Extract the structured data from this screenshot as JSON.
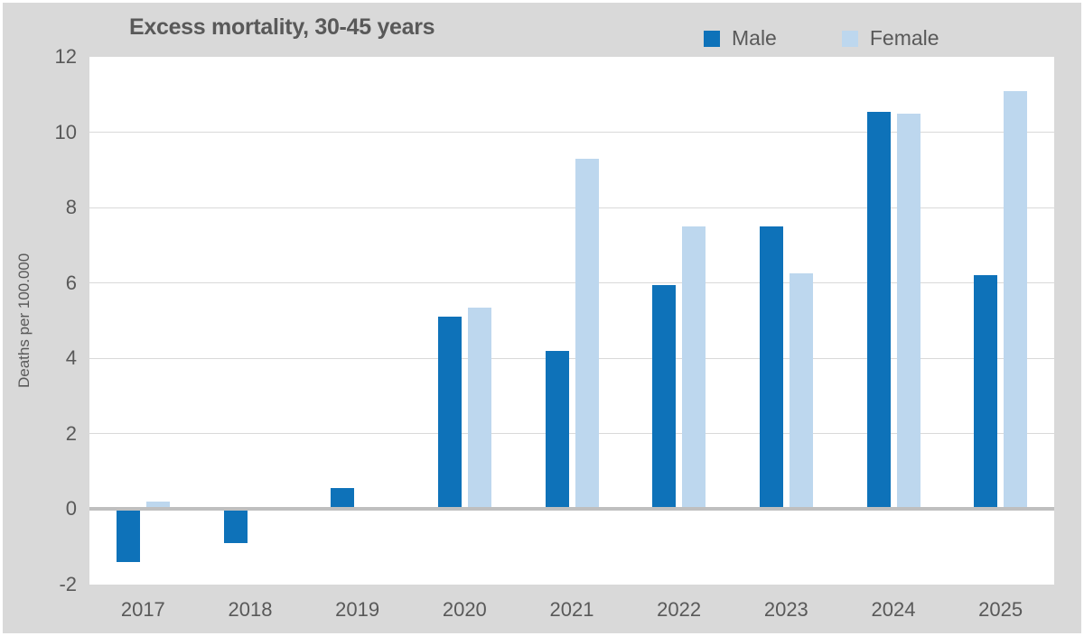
{
  "chart_data": {
    "type": "bar",
    "title": "Excess mortality, 30-45 years",
    "ylabel": "Deaths per 100.000",
    "xlabel": "",
    "categories": [
      "2017",
      "2018",
      "2019",
      "2020",
      "2021",
      "2022",
      "2023",
      "2024",
      "2025"
    ],
    "series": [
      {
        "name": "Male",
        "color": "#0E72B9",
        "values": [
          -1.4,
          -0.9,
          0.55,
          5.1,
          4.2,
          5.95,
          7.5,
          10.55,
          6.2
        ]
      },
      {
        "name": "Female",
        "color": "#BDD7EE",
        "values": [
          0.2,
          0.05,
          0,
          5.35,
          9.3,
          7.5,
          6.25,
          10.5,
          11.1
        ]
      }
    ],
    "ylim": [
      -2,
      12
    ],
    "yticks": [
      -2,
      0,
      2,
      4,
      6,
      8,
      10,
      12
    ],
    "grid": true,
    "legend_position": "top-right",
    "style": {
      "background": "#D9D9D9",
      "plot_background": "#FFFFFF",
      "gridline_color": "#D9D9D9",
      "zero_line_color": "#BFBFBF",
      "text_color": "#595959"
    }
  }
}
